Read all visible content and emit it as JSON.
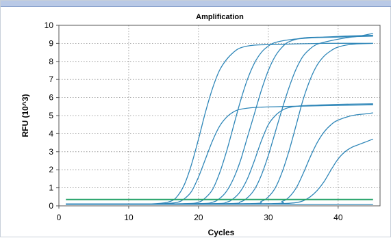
{
  "chart_data": {
    "type": "line",
    "title": "Amplification",
    "xlabel": "Cycles",
    "ylabel": "RFU (10^3)",
    "xlim": [
      0,
      46
    ],
    "ylim": [
      0,
      10
    ],
    "xticks": [
      "0",
      "10",
      "20",
      "30",
      "40"
    ],
    "yticks": [
      "0",
      "1",
      "2",
      "3",
      "4",
      "5",
      "6",
      "7",
      "8",
      "9",
      "10"
    ],
    "grid": true,
    "colors": {
      "curve": "#2e86b8",
      "threshold": "#27a36a",
      "grid": "#8a8a8a",
      "frame": "#555555",
      "band": "#b9c9e6"
    },
    "series": [
      {
        "values": [
          [
            1,
            0.1
          ],
          [
            5,
            0.1
          ],
          [
            10,
            0.1
          ],
          [
            14,
            0.12
          ],
          [
            16,
            0.25
          ],
          [
            17,
            0.55
          ],
          [
            18,
            1.2
          ],
          [
            19,
            2.3
          ],
          [
            20,
            3.7
          ],
          [
            21,
            5.2
          ],
          [
            22,
            6.5
          ],
          [
            23,
            7.5
          ],
          [
            24,
            8.1
          ],
          [
            25,
            8.5
          ],
          [
            26,
            8.75
          ],
          [
            28,
            8.9
          ],
          [
            32,
            8.95
          ],
          [
            38,
            9.0
          ],
          [
            45,
            9.0
          ]
        ]
      },
      {
        "values": [
          [
            1,
            0.1
          ],
          [
            10,
            0.1
          ],
          [
            15,
            0.12
          ],
          [
            17,
            0.2
          ],
          [
            18,
            0.4
          ],
          [
            19,
            0.8
          ],
          [
            20,
            1.6
          ],
          [
            21,
            2.6
          ],
          [
            22,
            3.6
          ],
          [
            23,
            4.4
          ],
          [
            24,
            4.9
          ],
          [
            25,
            5.2
          ],
          [
            26,
            5.35
          ],
          [
            28,
            5.45
          ],
          [
            32,
            5.5
          ],
          [
            38,
            5.55
          ],
          [
            45,
            5.6
          ]
        ]
      },
      {
        "values": [
          [
            1,
            0.1
          ],
          [
            10,
            0.1
          ],
          [
            18,
            0.12
          ],
          [
            20,
            0.2
          ],
          [
            21,
            0.45
          ],
          [
            22,
            0.9
          ],
          [
            23,
            1.8
          ],
          [
            24,
            3.0
          ],
          [
            25,
            4.4
          ],
          [
            26,
            5.8
          ],
          [
            27,
            7.0
          ],
          [
            28,
            7.9
          ],
          [
            29,
            8.5
          ],
          [
            30,
            8.85
          ],
          [
            31,
            9.05
          ],
          [
            33,
            9.2
          ],
          [
            36,
            9.3
          ],
          [
            40,
            9.35
          ],
          [
            45,
            9.4
          ]
        ]
      },
      {
        "values": [
          [
            1,
            0.1
          ],
          [
            10,
            0.1
          ],
          [
            20,
            0.12
          ],
          [
            22,
            0.2
          ],
          [
            23,
            0.4
          ],
          [
            24,
            0.8
          ],
          [
            25,
            1.5
          ],
          [
            26,
            2.5
          ],
          [
            27,
            3.8
          ],
          [
            28,
            5.1
          ],
          [
            29,
            6.4
          ],
          [
            30,
            7.5
          ],
          [
            31,
            8.3
          ],
          [
            32,
            8.8
          ],
          [
            33,
            9.1
          ],
          [
            35,
            9.3
          ],
          [
            38,
            9.35
          ],
          [
            41,
            9.4
          ],
          [
            45,
            9.45
          ]
        ]
      },
      {
        "values": [
          [
            1,
            0.1
          ],
          [
            10,
            0.1
          ],
          [
            22,
            0.12
          ],
          [
            24,
            0.2
          ],
          [
            25,
            0.4
          ],
          [
            26,
            0.8
          ],
          [
            27,
            1.5
          ],
          [
            28,
            2.5
          ],
          [
            29,
            3.6
          ],
          [
            30,
            4.5
          ],
          [
            31,
            5.0
          ],
          [
            32,
            5.3
          ],
          [
            33,
            5.45
          ],
          [
            35,
            5.55
          ],
          [
            40,
            5.62
          ],
          [
            45,
            5.65
          ]
        ]
      },
      {
        "values": [
          [
            1,
            0.1
          ],
          [
            10,
            0.1
          ],
          [
            24,
            0.12
          ],
          [
            26,
            0.22
          ],
          [
            27,
            0.45
          ],
          [
            28,
            0.9
          ],
          [
            29,
            1.7
          ],
          [
            30,
            2.8
          ],
          [
            31,
            4.1
          ],
          [
            32,
            5.4
          ],
          [
            33,
            6.6
          ],
          [
            34,
            7.6
          ],
          [
            35,
            8.3
          ],
          [
            36,
            8.7
          ],
          [
            37,
            8.95
          ],
          [
            39,
            9.15
          ],
          [
            41,
            9.3
          ],
          [
            43,
            9.4
          ],
          [
            45,
            9.55
          ]
        ]
      },
      {
        "values": [
          [
            1,
            0.1
          ],
          [
            10,
            0.1
          ],
          [
            27,
            0.12
          ],
          [
            29,
            0.25
          ],
          [
            30,
            0.5
          ],
          [
            31,
            1.0
          ],
          [
            32,
            1.9
          ],
          [
            33,
            3.1
          ],
          [
            34,
            4.5
          ],
          [
            35,
            5.9
          ],
          [
            36,
            7.0
          ],
          [
            37,
            7.8
          ],
          [
            38,
            8.3
          ],
          [
            39,
            8.6
          ],
          [
            40,
            8.8
          ],
          [
            42,
            8.95
          ],
          [
            45,
            9.0
          ]
        ]
      },
      {
        "values": [
          [
            1,
            0.1
          ],
          [
            10,
            0.1
          ],
          [
            30,
            0.12
          ],
          [
            32,
            0.25
          ],
          [
            33,
            0.5
          ],
          [
            34,
            1.0
          ],
          [
            35,
            1.8
          ],
          [
            36,
            2.7
          ],
          [
            37,
            3.5
          ],
          [
            38,
            4.1
          ],
          [
            39,
            4.5
          ],
          [
            40,
            4.75
          ],
          [
            42,
            5.0
          ],
          [
            44,
            5.1
          ],
          [
            45,
            5.15
          ]
        ]
      },
      {
        "values": [
          [
            1,
            0.1
          ],
          [
            10,
            0.1
          ],
          [
            30,
            0.1
          ],
          [
            32,
            0.12
          ],
          [
            34,
            0.18
          ],
          [
            35,
            0.28
          ],
          [
            36,
            0.5
          ],
          [
            37,
            0.85
          ],
          [
            38,
            1.35
          ],
          [
            39,
            2.0
          ],
          [
            40,
            2.6
          ],
          [
            41,
            3.0
          ],
          [
            42,
            3.25
          ],
          [
            43,
            3.4
          ],
          [
            44,
            3.55
          ],
          [
            45,
            3.7
          ]
        ]
      },
      {
        "values": [
          [
            1,
            0.08
          ],
          [
            20,
            0.08
          ],
          [
            30,
            0.09
          ],
          [
            45,
            0.09
          ]
        ]
      }
    ],
    "threshold": {
      "values": [
        [
          1,
          0.35
        ],
        [
          45,
          0.35
        ]
      ]
    }
  }
}
